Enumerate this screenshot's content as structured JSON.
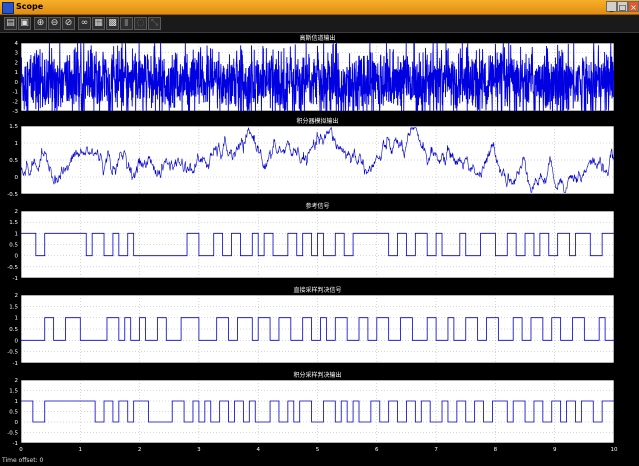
{
  "window": {
    "title": "Scope",
    "buttons": {
      "minimize": "_",
      "maximize": "□",
      "close": "×"
    }
  },
  "toolbar": {
    "items": [
      {
        "name": "print-icon",
        "glyph": "▤"
      },
      {
        "name": "parameters-icon",
        "glyph": "▣"
      },
      {
        "name": "zoom-in-icon",
        "glyph": "⊕"
      },
      {
        "name": "zoom-x-icon",
        "glyph": "⊖"
      },
      {
        "name": "zoom-y-icon",
        "glyph": "⊘"
      },
      {
        "name": "binoculars-icon",
        "glyph": "∞"
      },
      {
        "name": "save-axes-icon",
        "glyph": "▦"
      },
      {
        "name": "restore-axes-icon",
        "glyph": "▩"
      },
      {
        "name": "floating-scope-icon",
        "glyph": "▮"
      },
      {
        "name": "lock-axes-icon",
        "glyph": "◌"
      },
      {
        "name": "signal-selection-icon",
        "glyph": "⤡"
      }
    ]
  },
  "status": {
    "time_offset_label": "Time offset:",
    "time_offset_value": "0"
  },
  "colors": {
    "plot_bg": "#ffffff",
    "trace": "#0000c8",
    "fill_trace": "#0000e0",
    "axis_text": "#ffffff",
    "figure_bg": "#000000"
  },
  "chart_data": [
    {
      "type": "line",
      "title": "高斯信道输出",
      "ylim": [
        -3,
        4
      ],
      "yticks": [
        -3,
        -2,
        -1,
        0,
        1,
        2,
        3,
        4
      ],
      "xlim": [
        0,
        10
      ],
      "style": "dense-noise",
      "grid": true
    },
    {
      "type": "line",
      "title": "积分器模拟输出",
      "ylim": [
        -0.5,
        1.5
      ],
      "yticks": [
        -0.5,
        0,
        0.5,
        1,
        1.5
      ],
      "xlim": [
        0,
        10
      ],
      "style": "random-walk",
      "grid": true
    },
    {
      "type": "line",
      "title": "参考信号",
      "ylim": [
        -1,
        2
      ],
      "yticks": [
        -1,
        -0.5,
        0,
        0.5,
        1,
        1.5,
        2
      ],
      "xlim": [
        0,
        10
      ],
      "style": "binary-step",
      "grid": true,
      "x": [
        0,
        0.25,
        0.4,
        1.1,
        1.2,
        1.4,
        1.55,
        1.65,
        1.8,
        1.9,
        2.8,
        3.0,
        3.25,
        3.4,
        3.55,
        3.7,
        3.9,
        4.0,
        4.1,
        4.25,
        4.5,
        4.65,
        4.75,
        4.9,
        5.0,
        5.1,
        5.3,
        5.45,
        5.6,
        6.2,
        6.35,
        6.5,
        6.65,
        6.85,
        7.0,
        7.1,
        7.4,
        7.5,
        7.75,
        8.0,
        8.2,
        8.35,
        8.5,
        8.65,
        8.75,
        8.9,
        9.05,
        9.25,
        9.35,
        9.6,
        9.8
      ],
      "values": [
        1,
        0,
        1,
        0,
        1,
        0,
        1,
        0,
        1,
        0,
        1,
        0,
        1,
        0,
        1,
        0,
        1,
        0,
        1,
        0,
        1,
        0,
        1,
        0,
        1,
        0,
        1,
        0,
        1,
        0,
        1,
        0,
        1,
        0,
        1,
        0,
        1,
        0,
        1,
        0,
        1,
        0,
        1,
        0,
        1,
        0,
        1,
        0,
        1,
        0,
        1
      ]
    },
    {
      "type": "line",
      "title": "直接采样判决信号",
      "ylim": [
        -1,
        2
      ],
      "yticks": [
        -1,
        -0.5,
        0,
        0.5,
        1,
        1.5,
        2
      ],
      "xlim": [
        0,
        10
      ],
      "style": "binary-step",
      "grid": true,
      "x": [
        0,
        0.4,
        0.55,
        0.75,
        1.0,
        1.45,
        1.65,
        1.75,
        1.85,
        2.0,
        2.1,
        2.3,
        2.45,
        2.7,
        3.0,
        3.3,
        3.5,
        3.65,
        3.9,
        4.0,
        4.2,
        4.35,
        4.55,
        4.75,
        4.9,
        5.05,
        5.15,
        5.3,
        5.5,
        5.7,
        5.85,
        6.0,
        6.2,
        6.4,
        6.6,
        6.85,
        7.0,
        7.2,
        7.3,
        7.5,
        7.7,
        7.85,
        8.05,
        8.3,
        8.45,
        8.6,
        8.8,
        8.95,
        9.1,
        9.3,
        9.5,
        9.75,
        9.85
      ],
      "values": [
        0,
        1,
        0,
        1,
        0,
        1,
        0,
        1,
        0,
        1,
        0,
        1,
        0,
        1,
        0,
        1,
        0,
        1,
        0,
        1,
        0,
        1,
        0,
        1,
        0,
        1,
        0,
        1,
        0,
        1,
        0,
        1,
        0,
        1,
        0,
        1,
        0,
        1,
        0,
        1,
        0,
        1,
        0,
        1,
        0,
        1,
        0,
        1,
        0,
        1,
        0,
        1,
        0
      ]
    },
    {
      "type": "line",
      "title": "积分采样判决输出",
      "ylim": [
        -1,
        2
      ],
      "yticks": [
        -1,
        -0.5,
        0,
        0.5,
        1,
        1.5,
        2
      ],
      "xlim": [
        0,
        10
      ],
      "style": "binary-step",
      "grid": true,
      "xticks": [
        0,
        1,
        2,
        3,
        4,
        5,
        6,
        7,
        8,
        9,
        10
      ],
      "x": [
        0,
        0.2,
        0.4,
        1.25,
        1.4,
        1.55,
        1.65,
        1.8,
        1.9,
        2.15,
        2.55,
        2.75,
        2.9,
        3.0,
        3.1,
        3.2,
        3.35,
        3.5,
        3.6,
        3.75,
        3.85,
        3.95,
        4.2,
        4.35,
        4.5,
        4.6,
        4.7,
        4.9,
        5.1,
        5.3,
        5.4,
        5.5,
        5.6,
        5.7,
        5.9,
        6.05,
        6.2,
        6.35,
        6.5,
        6.65,
        6.75,
        6.9,
        7.1,
        7.2,
        7.35,
        7.5,
        7.65,
        7.8,
        7.95,
        8.2,
        8.3,
        8.5,
        8.65,
        8.8,
        8.95,
        9.1,
        9.2,
        9.35,
        9.45,
        9.65,
        9.8
      ],
      "values": [
        1,
        0,
        1,
        0,
        1,
        0,
        1,
        0,
        1,
        0,
        1,
        0,
        1,
        0,
        1,
        0,
        1,
        0,
        1,
        0,
        1,
        0,
        1,
        0,
        1,
        0,
        1,
        0,
        1,
        0,
        1,
        0,
        1,
        0,
        1,
        0,
        1,
        0,
        1,
        0,
        1,
        0,
        1,
        0,
        1,
        0,
        1,
        0,
        1,
        0,
        1,
        0,
        1,
        0,
        1,
        0,
        1,
        0,
        1,
        0,
        1
      ]
    }
  ]
}
